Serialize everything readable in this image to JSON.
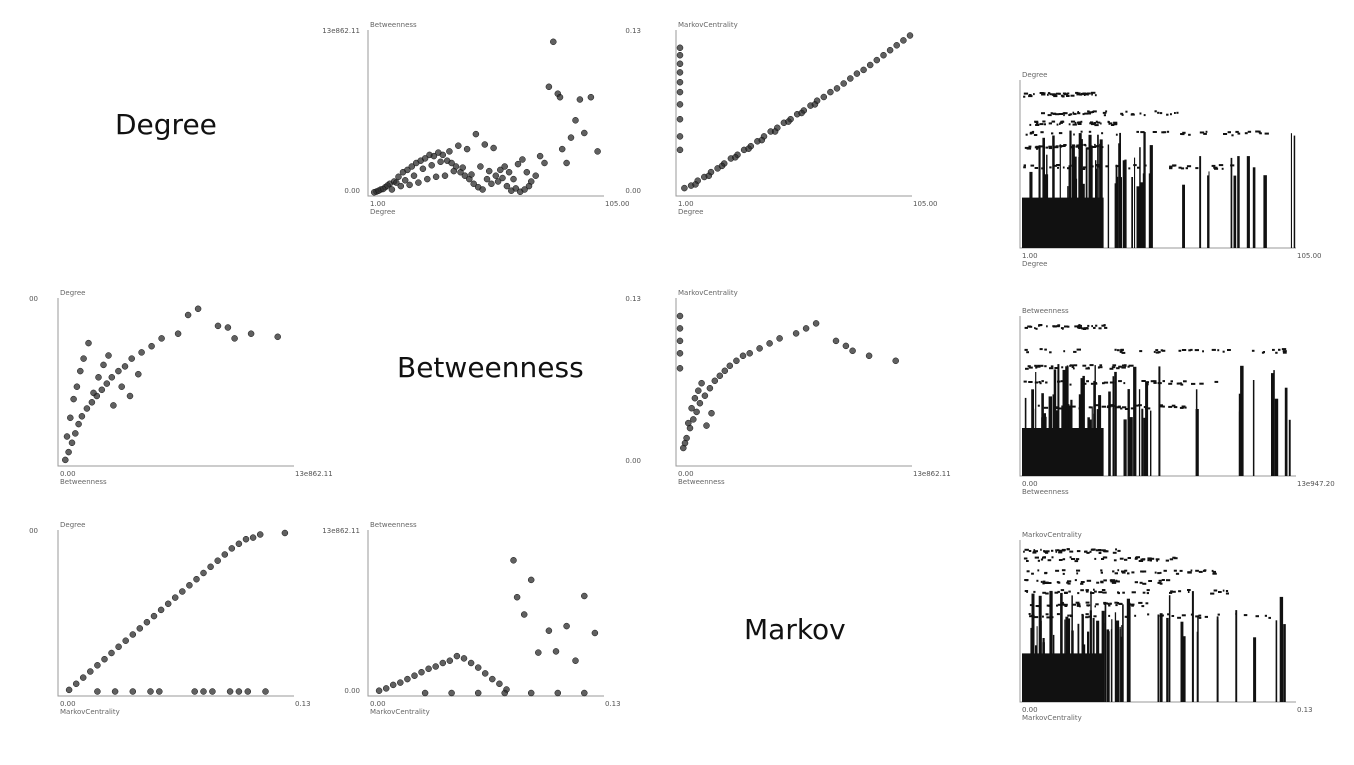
{
  "diagonal_labels": {
    "degree": "Degree",
    "betweenness": "Betweenness",
    "markov": "Markov"
  },
  "chart_data": [
    {
      "id": "p12",
      "type": "scatter",
      "xlabel": "Degree",
      "ylabel": "Betweenness",
      "xlim": [
        1,
        105
      ],
      "ylim": [
        0,
        13862.11
      ],
      "x_min_label": "1.00",
      "x_max_label": "105.00",
      "y_min_label": "0.00",
      "y_max_label": "13e862.11",
      "points": [
        [
          3,
          120
        ],
        [
          5,
          300
        ],
        [
          7,
          500
        ],
        [
          9,
          800
        ],
        [
          11,
          1000
        ],
        [
          13,
          1400
        ],
        [
          15,
          1800
        ],
        [
          17,
          2000
        ],
        [
          19,
          2300
        ],
        [
          21,
          2600
        ],
        [
          23,
          2800
        ],
        [
          25,
          3000
        ],
        [
          27,
          3300
        ],
        [
          29,
          3200
        ],
        [
          31,
          3500
        ],
        [
          33,
          3300
        ],
        [
          35,
          2800
        ],
        [
          37,
          2600
        ],
        [
          39,
          2300
        ],
        [
          41,
          1800
        ],
        [
          43,
          1500
        ],
        [
          45,
          1200
        ],
        [
          47,
          800
        ],
        [
          49,
          500
        ],
        [
          51,
          300
        ],
        [
          53,
          1200
        ],
        [
          55,
          800
        ],
        [
          57,
          1500
        ],
        [
          59,
          2000
        ],
        [
          61,
          2300
        ],
        [
          63,
          1800
        ],
        [
          65,
          1200
        ],
        [
          67,
          2500
        ],
        [
          69,
          2900
        ],
        [
          71,
          1800
        ],
        [
          73,
          1000
        ],
        [
          75,
          1500
        ],
        [
          77,
          3200
        ],
        [
          79,
          2600
        ],
        [
          81,
          9200
        ],
        [
          83,
          13100
        ],
        [
          85,
          8600
        ],
        [
          86,
          8300
        ],
        [
          87,
          3800
        ],
        [
          89,
          2600
        ],
        [
          91,
          4800
        ],
        [
          93,
          6300
        ],
        [
          95,
          8100
        ],
        [
          97,
          5200
        ],
        [
          100,
          8300
        ],
        [
          103,
          3600
        ],
        [
          2,
          60
        ],
        [
          4,
          200
        ],
        [
          6,
          350
        ],
        [
          8,
          650
        ],
        [
          10,
          300
        ],
        [
          12,
          900
        ],
        [
          14,
          600
        ],
        [
          16,
          1100
        ],
        [
          18,
          700
        ],
        [
          20,
          1500
        ],
        [
          22,
          900
        ],
        [
          24,
          2100
        ],
        [
          26,
          1200
        ],
        [
          28,
          2400
        ],
        [
          30,
          1400
        ],
        [
          32,
          2700
        ],
        [
          34,
          1500
        ],
        [
          36,
          3600
        ],
        [
          38,
          1900
        ],
        [
          40,
          4100
        ],
        [
          42,
          2200
        ],
        [
          44,
          3800
        ],
        [
          46,
          1600
        ],
        [
          48,
          5100
        ],
        [
          50,
          2300
        ],
        [
          52,
          4200
        ],
        [
          54,
          1900
        ],
        [
          56,
          3900
        ],
        [
          58,
          1000
        ],
        [
          60,
          1300
        ],
        [
          62,
          600
        ],
        [
          64,
          200
        ],
        [
          66,
          400
        ],
        [
          68,
          100
        ],
        [
          70,
          300
        ],
        [
          72,
          600
        ]
      ]
    },
    {
      "id": "p13",
      "type": "scatter",
      "xlabel": "Degree",
      "ylabel": "MarkovCentrality",
      "xlim": [
        1,
        105
      ],
      "ylim": [
        0,
        0.13
      ],
      "x_min_label": "1.00",
      "x_max_label": "105.00",
      "y_min_label": "0.00",
      "y_max_label": "0.13",
      "points": [
        [
          1,
          0.118
        ],
        [
          1,
          0.112
        ],
        [
          1,
          0.105
        ],
        [
          1,
          0.098
        ],
        [
          1,
          0.09
        ],
        [
          1,
          0.082
        ],
        [
          1,
          0.072
        ],
        [
          1,
          0.06
        ],
        [
          1,
          0.046
        ],
        [
          1,
          0.035
        ],
        [
          3,
          0.004
        ],
        [
          6,
          0.006
        ],
        [
          9,
          0.01
        ],
        [
          12,
          0.013
        ],
        [
          15,
          0.017
        ],
        [
          18,
          0.02
        ],
        [
          21,
          0.024
        ],
        [
          24,
          0.028
        ],
        [
          27,
          0.031
        ],
        [
          30,
          0.035
        ],
        [
          33,
          0.038
        ],
        [
          36,
          0.042
        ],
        [
          39,
          0.046
        ],
        [
          42,
          0.05
        ],
        [
          45,
          0.053
        ],
        [
          48,
          0.057
        ],
        [
          51,
          0.06
        ],
        [
          54,
          0.064
        ],
        [
          57,
          0.067
        ],
        [
          60,
          0.071
        ],
        [
          63,
          0.075
        ],
        [
          66,
          0.078
        ],
        [
          69,
          0.082
        ],
        [
          72,
          0.085
        ],
        [
          75,
          0.089
        ],
        [
          78,
          0.093
        ],
        [
          81,
          0.097
        ],
        [
          84,
          0.1
        ],
        [
          87,
          0.104
        ],
        [
          90,
          0.108
        ],
        [
          93,
          0.112
        ],
        [
          96,
          0.116
        ],
        [
          99,
          0.12
        ],
        [
          102,
          0.124
        ],
        [
          105,
          0.128
        ],
        [
          8,
          0.007
        ],
        [
          14,
          0.014
        ],
        [
          20,
          0.022
        ],
        [
          26,
          0.029
        ],
        [
          32,
          0.036
        ],
        [
          38,
          0.043
        ],
        [
          44,
          0.05
        ],
        [
          50,
          0.058
        ],
        [
          56,
          0.065
        ],
        [
          62,
          0.072
        ]
      ]
    },
    {
      "id": "p14",
      "type": "scatter",
      "xlabel": "Degree",
      "ylabel": "Degree",
      "xlim": [
        1,
        105
      ],
      "ylim": [
        0,
        1
      ],
      "x_min_label": "1.00",
      "x_max_label": "105.00",
      "y_min_label": "",
      "y_max_label": "",
      "points": []
    },
    {
      "id": "p21",
      "type": "scatter",
      "xlabel": "Betweenness",
      "ylabel": "Degree",
      "xlim": [
        0,
        13862.11
      ],
      "ylim": [
        1,
        105
      ],
      "x_min_label": "0.00",
      "x_max_label": "13e862.11",
      "y_min_label": "",
      "y_max_label": "00",
      "points": [
        [
          200,
          3
        ],
        [
          400,
          8
        ],
        [
          600,
          14
        ],
        [
          800,
          20
        ],
        [
          1000,
          26
        ],
        [
          1200,
          31
        ],
        [
          1500,
          36
        ],
        [
          1800,
          40
        ],
        [
          2100,
          44
        ],
        [
          2400,
          48
        ],
        [
          2700,
          52
        ],
        [
          3000,
          56
        ],
        [
          3400,
          60
        ],
        [
          3800,
          63
        ],
        [
          4200,
          68
        ],
        [
          4800,
          72
        ],
        [
          5400,
          76
        ],
        [
          6000,
          81
        ],
        [
          7000,
          84
        ],
        [
          7600,
          96
        ],
        [
          8200,
          100
        ],
        [
          9400,
          89
        ],
        [
          10000,
          88
        ],
        [
          10400,
          81
        ],
        [
          11400,
          84
        ],
        [
          13000,
          82
        ],
        [
          300,
          18
        ],
        [
          500,
          30
        ],
        [
          700,
          42
        ],
        [
          900,
          50
        ],
        [
          1100,
          60
        ],
        [
          1300,
          68
        ],
        [
          1600,
          78
        ],
        [
          1900,
          46
        ],
        [
          2200,
          56
        ],
        [
          2500,
          64
        ],
        [
          2800,
          70
        ],
        [
          3100,
          38
        ],
        [
          3600,
          50
        ],
        [
          4100,
          44
        ],
        [
          4600,
          58
        ]
      ]
    },
    {
      "id": "p23",
      "type": "scatter",
      "xlabel": "Betweenness",
      "ylabel": "MarkovCentrality",
      "xlim": [
        0,
        13862.11
      ],
      "ylim": [
        0,
        0.13
      ],
      "x_min_label": "0.00",
      "x_max_label": "13e862.11",
      "y_min_label": "0.00",
      "y_max_label": "0.13",
      "points": [
        [
          0,
          0.118
        ],
        [
          0,
          0.108
        ],
        [
          0,
          0.098
        ],
        [
          0,
          0.088
        ],
        [
          0,
          0.076
        ],
        [
          200,
          0.012
        ],
        [
          400,
          0.02
        ],
        [
          600,
          0.028
        ],
        [
          800,
          0.035
        ],
        [
          1000,
          0.041
        ],
        [
          1200,
          0.048
        ],
        [
          1500,
          0.054
        ],
        [
          1800,
          0.06
        ],
        [
          2100,
          0.066
        ],
        [
          2400,
          0.07
        ],
        [
          2700,
          0.074
        ],
        [
          3000,
          0.078
        ],
        [
          3400,
          0.082
        ],
        [
          3800,
          0.086
        ],
        [
          4200,
          0.088
        ],
        [
          4800,
          0.092
        ],
        [
          5400,
          0.096
        ],
        [
          6000,
          0.1
        ],
        [
          7000,
          0.104
        ],
        [
          7600,
          0.108
        ],
        [
          8200,
          0.112
        ],
        [
          9400,
          0.098
        ],
        [
          10000,
          0.094
        ],
        [
          10400,
          0.09
        ],
        [
          11400,
          0.086
        ],
        [
          13000,
          0.082
        ],
        [
          300,
          0.016
        ],
        [
          500,
          0.032
        ],
        [
          700,
          0.044
        ],
        [
          900,
          0.052
        ],
        [
          1100,
          0.058
        ],
        [
          1300,
          0.064
        ],
        [
          1600,
          0.03
        ],
        [
          1900,
          0.04
        ]
      ]
    },
    {
      "id": "p24",
      "type": "scatter",
      "xlabel": "Betweenness",
      "ylabel": "Betweenness",
      "xlim": [
        0,
        13947.2
      ],
      "ylim": [
        0,
        1
      ],
      "x_min_label": "0.00",
      "x_max_label": "13e947.20",
      "y_min_label": "",
      "y_max_label": "",
      "points": []
    },
    {
      "id": "p31",
      "type": "scatter",
      "xlabel": "MarkovCentrality",
      "ylabel": "Degree",
      "xlim": [
        0,
        0.13
      ],
      "ylim": [
        1,
        105
      ],
      "x_min_label": "0.00",
      "x_max_label": "0.13",
      "y_min_label": "",
      "y_max_label": "00",
      "points": [
        [
          0.004,
          3
        ],
        [
          0.008,
          7
        ],
        [
          0.012,
          11
        ],
        [
          0.016,
          15
        ],
        [
          0.02,
          19
        ],
        [
          0.024,
          23
        ],
        [
          0.028,
          27
        ],
        [
          0.032,
          31
        ],
        [
          0.036,
          35
        ],
        [
          0.04,
          39
        ],
        [
          0.044,
          43
        ],
        [
          0.048,
          47
        ],
        [
          0.052,
          51
        ],
        [
          0.056,
          55
        ],
        [
          0.06,
          59
        ],
        [
          0.064,
          63
        ],
        [
          0.068,
          67
        ],
        [
          0.072,
          71
        ],
        [
          0.076,
          75
        ],
        [
          0.08,
          79
        ],
        [
          0.084,
          83
        ],
        [
          0.088,
          87
        ],
        [
          0.092,
          91
        ],
        [
          0.096,
          95
        ],
        [
          0.1,
          98
        ],
        [
          0.104,
          101
        ],
        [
          0.108,
          102
        ],
        [
          0.112,
          104
        ],
        [
          0.126,
          105
        ],
        [
          0.02,
          2
        ],
        [
          0.03,
          2
        ],
        [
          0.04,
          2
        ],
        [
          0.05,
          2
        ],
        [
          0.055,
          2
        ],
        [
          0.075,
          2
        ],
        [
          0.08,
          2
        ],
        [
          0.085,
          2
        ],
        [
          0.095,
          2
        ],
        [
          0.1,
          2
        ],
        [
          0.105,
          2
        ],
        [
          0.115,
          2
        ]
      ]
    },
    {
      "id": "p32",
      "type": "scatter",
      "xlabel": "MarkovCentrality",
      "ylabel": "Betweenness",
      "xlim": [
        0,
        0.13
      ],
      "ylim": [
        0,
        13862.11
      ],
      "x_min_label": "0.00",
      "x_max_label": "0.13",
      "y_min_label": "0.00",
      "y_max_label": "13e862.11",
      "points": [
        [
          0.004,
          200
        ],
        [
          0.008,
          400
        ],
        [
          0.012,
          700
        ],
        [
          0.016,
          900
        ],
        [
          0.02,
          1200
        ],
        [
          0.024,
          1500
        ],
        [
          0.028,
          1800
        ],
        [
          0.032,
          2100
        ],
        [
          0.036,
          2300
        ],
        [
          0.04,
          2600
        ],
        [
          0.044,
          2800
        ],
        [
          0.048,
          3200
        ],
        [
          0.052,
          3000
        ],
        [
          0.056,
          2600
        ],
        [
          0.06,
          2200
        ],
        [
          0.064,
          1700
        ],
        [
          0.068,
          1200
        ],
        [
          0.072,
          800
        ],
        [
          0.076,
          300
        ],
        [
          0.08,
          11500
        ],
        [
          0.082,
          8300
        ],
        [
          0.086,
          6800
        ],
        [
          0.09,
          9800
        ],
        [
          0.094,
          3500
        ],
        [
          0.1,
          5400
        ],
        [
          0.104,
          3600
        ],
        [
          0.11,
          5800
        ],
        [
          0.115,
          2800
        ],
        [
          0.12,
          8400
        ],
        [
          0.126,
          5200
        ],
        [
          0.03,
          0
        ],
        [
          0.045,
          0
        ],
        [
          0.06,
          0
        ],
        [
          0.075,
          0
        ],
        [
          0.09,
          0
        ],
        [
          0.105,
          0
        ],
        [
          0.12,
          0
        ]
      ]
    },
    {
      "id": "p34",
      "type": "scatter",
      "xlabel": "MarkovCentrality",
      "ylabel": "MarkovCentrality",
      "xlim": [
        0,
        0.13
      ],
      "ylim": [
        0,
        1
      ],
      "x_min_label": "0.00",
      "x_max_label": "0.13",
      "y_min_label": "",
      "y_max_label": "",
      "points": []
    }
  ]
}
